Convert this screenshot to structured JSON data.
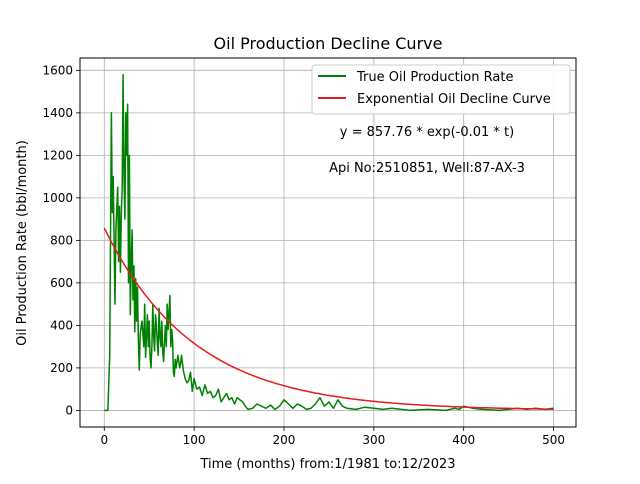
{
  "chart_data": {
    "type": "line",
    "title": "Oil Production Decline Curve",
    "xlabel": "Time (months) from:1/1981 to:12/2023",
    "ylabel": "Oil Production Rate (bbl/month)",
    "xlim": [
      -27,
      525
    ],
    "ylim": [
      -78,
      1658
    ],
    "xticks": [
      0,
      100,
      200,
      300,
      400,
      500
    ],
    "yticks": [
      0,
      200,
      400,
      600,
      800,
      1000,
      1200,
      1400,
      1600
    ],
    "grid": true,
    "legend_position": "top-right",
    "annotations": [
      "y = 857.76 * exp(-0.01 * t)",
      "Api No:2510851, Well:87-AX-3"
    ],
    "series": [
      {
        "name": "True Oil Production Rate",
        "color": "#008000",
        "x": [
          0,
          4,
          6,
          8,
          9,
          10,
          11,
          12,
          13,
          14,
          15,
          16,
          17,
          18,
          19,
          20,
          21,
          22,
          23,
          24,
          25,
          26,
          27,
          28,
          29,
          30,
          31,
          32,
          33,
          34,
          35,
          36,
          37,
          38,
          39,
          40,
          42,
          44,
          45,
          46,
          47,
          48,
          49,
          50,
          51,
          52,
          53,
          54,
          55,
          56,
          57,
          58,
          59,
          60,
          61,
          62,
          63,
          64,
          65,
          66,
          67,
          68,
          69,
          70,
          71,
          72,
          73,
          74,
          75,
          76,
          77,
          78,
          79,
          80,
          82,
          84,
          85,
          86,
          88,
          90,
          92,
          94,
          96,
          98,
          100,
          103,
          106,
          109,
          112,
          115,
          118,
          121,
          124,
          127,
          130,
          133,
          136,
          139,
          142,
          145,
          148,
          151,
          154,
          157,
          160,
          165,
          170,
          175,
          180,
          185,
          190,
          195,
          200,
          205,
          210,
          215,
          220,
          225,
          230,
          235,
          240,
          245,
          250,
          255,
          260,
          265,
          270,
          280,
          290,
          300,
          310,
          320,
          340,
          360,
          380,
          390,
          395,
          400,
          405,
          410,
          420,
          440,
          460,
          470,
          480,
          490,
          500
        ],
        "y": [
          0,
          0,
          260,
          1400,
          930,
          1100,
          800,
          500,
          850,
          950,
          1050,
          700,
          960,
          650,
          920,
          1050,
          1580,
          1100,
          900,
          1400,
          1200,
          1440,
          600,
          1200,
          450,
          700,
          850,
          520,
          680,
          370,
          620,
          420,
          580,
          320,
          190,
          360,
          420,
          300,
          500,
          250,
          350,
          450,
          300,
          420,
          250,
          200,
          300,
          500,
          350,
          280,
          450,
          400,
          320,
          260,
          480,
          350,
          300,
          420,
          280,
          230,
          320,
          400,
          300,
          500,
          380,
          460,
          540,
          300,
          380,
          330,
          180,
          160,
          240,
          200,
          260,
          200,
          220,
          260,
          190,
          150,
          130,
          140,
          180,
          90,
          150,
          100,
          110,
          70,
          120,
          80,
          90,
          60,
          70,
          100,
          40,
          60,
          80,
          50,
          60,
          30,
          60,
          50,
          40,
          20,
          5,
          10,
          30,
          20,
          10,
          25,
          5,
          20,
          50,
          30,
          10,
          30,
          20,
          5,
          10,
          30,
          60,
          20,
          40,
          10,
          50,
          20,
          10,
          5,
          15,
          10,
          5,
          10,
          0,
          5,
          0,
          10,
          5,
          20,
          15,
          10,
          5,
          0,
          10,
          5,
          10,
          5,
          10
        ]
      },
      {
        "name": "Exponential Oil Decline Curve",
        "color": "#e41a1c",
        "formula_a": 857.76,
        "formula_b": -0.01,
        "x_range": [
          0,
          500
        ]
      }
    ]
  }
}
